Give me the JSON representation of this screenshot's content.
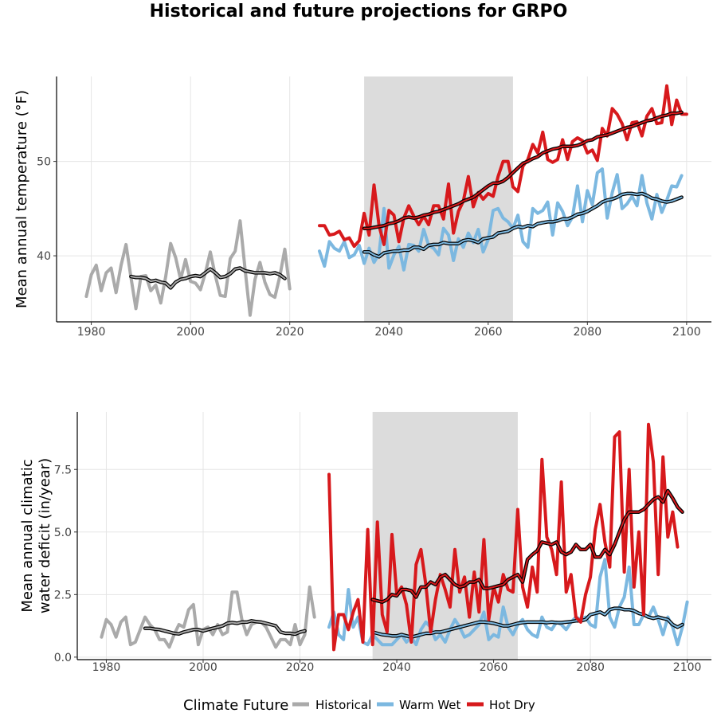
{
  "title": "Historical and future projections for GRPO",
  "colors": {
    "historical": "#aaaaaa",
    "warm_wet": "#7cb8e0",
    "hot_dry": "#d7191c",
    "smooth": "#000000",
    "shade": "#dcdcdc",
    "grid": "#e5e5e5"
  },
  "legend": {
    "title": "Climate Future",
    "items": [
      "Historical",
      "Warm Wet",
      "Hot Dry"
    ],
    "position": "bottom"
  },
  "chart_data": [
    {
      "type": "line",
      "ylabel": "Mean annual temperature (°F)",
      "xlim": [
        1973,
        2105
      ],
      "ylim": [
        33,
        59
      ],
      "xticks": [
        1980,
        2000,
        2020,
        2040,
        2060,
        2080,
        2100
      ],
      "yticks": [
        40,
        50
      ],
      "shaded_period": [
        2035,
        2065
      ],
      "grid": true,
      "series": [
        {
          "name": "Historical",
          "x_start": 1979,
          "values": [
            35.7,
            38,
            39,
            36.3,
            38.2,
            38.7,
            36.1,
            39,
            41.2,
            37.7,
            34.4,
            37.8,
            37.9,
            36.3,
            36.9,
            35,
            37.8,
            41.3,
            39.8,
            37.5,
            39.6,
            37.3,
            37.1,
            36.4,
            38.2,
            40.4,
            37.9,
            35.8,
            35.7,
            39.7,
            40.5,
            43.7,
            38.6,
            33.7,
            37.5,
            39.3,
            37.2,
            35.9,
            35.6,
            37.8,
            40.7,
            36.5
          ]
        },
        {
          "name": "Historical",
          "smooth": true,
          "x_start": 1988,
          "values": [
            37.8,
            37.7,
            37.7,
            37.6,
            37.3,
            37.4,
            37.2,
            37.1,
            36.6,
            37.2,
            37.5,
            37.6,
            37.8,
            37.9,
            37.8,
            38.2,
            38.6,
            38.2,
            37.7,
            37.8,
            38.1,
            38.6,
            38.7,
            38.4,
            38.3,
            38.2,
            38.2,
            38.2,
            38.1,
            38.2,
            38.0,
            37.6
          ]
        },
        {
          "name": "Warm Wet",
          "x_start": 2026,
          "values": [
            40.5,
            38.9,
            41.5,
            40.8,
            40.5,
            41.5,
            39.8,
            40.1,
            41.1,
            39.2,
            40.8,
            39.3,
            40.2,
            45,
            38.7,
            40.1,
            41,
            38.5,
            41.2,
            41.1,
            40.5,
            42.8,
            41.1,
            40.8,
            40.1,
            42.9,
            42.2,
            39.5,
            41.8,
            40.9,
            42.4,
            41.4,
            42.8,
            40.4,
            41.7,
            44.8,
            45,
            44,
            43.6,
            42.9,
            44.3,
            41.5,
            40.9,
            45,
            44.5,
            44.8,
            45.7,
            42.2,
            45.6,
            44.7,
            43.2,
            44.1,
            47.4,
            43.6,
            46.9,
            45.4,
            48.8,
            49.2,
            44,
            46.7,
            48.6,
            45,
            45.5,
            46.3,
            45.3,
            48.5,
            45.6,
            43.9,
            46.5,
            44.6,
            45.9,
            47.4,
            47.3,
            48.5
          ]
        },
        {
          "name": "Warm Wet",
          "smooth": true,
          "x_start": 2035,
          "values": [
            40.4,
            40.4,
            40.1,
            39.9,
            40.3,
            40.4,
            40.5,
            40.5,
            40.6,
            40.6,
            40.9,
            40.9,
            40.7,
            41.1,
            41.2,
            41.2,
            41.4,
            41.3,
            41.3,
            41.3,
            41.6,
            41.7,
            41.6,
            41.4,
            41.8,
            41.9,
            42.0,
            42.4,
            42.5,
            42.6,
            42.9,
            43.1,
            43.0,
            43.2,
            43.1,
            43.4,
            43.5,
            43.6,
            43.6,
            43.7,
            43.9,
            43.9,
            44.1,
            44.4,
            44.5,
            44.7,
            45.0,
            45.3,
            45.7,
            45.9,
            46.0,
            46.2,
            46.5,
            46.6,
            46.6,
            46.5,
            46.6,
            46.4,
            46.1,
            46.0,
            45.8,
            45.7,
            45.8,
            46.0,
            46.2
          ]
        },
        {
          "name": "Hot Dry",
          "x_start": 2026,
          "values": [
            43.2,
            43.2,
            42.2,
            42.3,
            42.6,
            41.7,
            41.9,
            41,
            41.6,
            44.5,
            42.2,
            47.5,
            43.2,
            41.2,
            44.8,
            44.3,
            41.5,
            44,
            45.3,
            44.2,
            43.3,
            44.2,
            43.3,
            45.3,
            45.3,
            43.9,
            47.6,
            42.4,
            44.7,
            45.8,
            48.4,
            45.2,
            46.7,
            46,
            46.6,
            46.3,
            48.4,
            50,
            50,
            47.3,
            46.8,
            49.5,
            50.2,
            51.8,
            50.9,
            53.1,
            50.2,
            49.9,
            50.2,
            52.3,
            50.2,
            52.1,
            52.5,
            52.2,
            50.9,
            51.2,
            50.1,
            53.5,
            52.7,
            55.6,
            55,
            54,
            52.3,
            54.1,
            54.2,
            52.7,
            54.8,
            55.6,
            54,
            54.1,
            58,
            53.9,
            56.5,
            55,
            55
          ]
        },
        {
          "name": "Hot Dry",
          "smooth": true,
          "x_start": 2035,
          "values": [
            42.9,
            42.9,
            43.0,
            43.1,
            43.2,
            43.4,
            43.5,
            43.7,
            44.0,
            44.1,
            44.0,
            44.1,
            44.3,
            44.4,
            44.6,
            44.7,
            44.9,
            45.1,
            45.3,
            45.5,
            45.8,
            46.0,
            46.2,
            46.6,
            47.0,
            47.4,
            47.7,
            47.7,
            47.9,
            48.3,
            48.8,
            49.3,
            49.8,
            50.0,
            50.3,
            50.5,
            50.9,
            51.1,
            51.3,
            51.4,
            51.6,
            51.6,
            51.6,
            51.7,
            51.9,
            52.2,
            52.3,
            52.6,
            52.7,
            52.8,
            53.0,
            53.2,
            53.4,
            53.6,
            53.7,
            53.9,
            54.1,
            54.3,
            54.4,
            54.6,
            54.8,
            54.9,
            55.1,
            55.1,
            55.2
          ]
        }
      ]
    },
    {
      "type": "line",
      "ylabel": "Mean annual climatic water deficit (in/year)",
      "ylabel_lines": [
        "Mean annual climatic",
        "water deficit (in/year)"
      ],
      "xlim": [
        1974,
        2105
      ],
      "ylim": [
        -0.1,
        9.8
      ],
      "xticks": [
        1980,
        2000,
        2020,
        2040,
        2060,
        2080,
        2100
      ],
      "yticks": [
        0.0,
        2.5,
        5.0,
        7.5
      ],
      "ytick_labels": [
        "0.0",
        "2.5",
        "5.0",
        "7.5"
      ],
      "shaded_period": [
        2035,
        2065
      ],
      "grid": true,
      "series": [
        {
          "name": "Historical",
          "x_start": 1979,
          "values": [
            0.8,
            1.5,
            1.3,
            0.8,
            1.4,
            1.6,
            0.5,
            0.6,
            1.1,
            1.6,
            1.3,
            1.1,
            0.7,
            0.7,
            0.4,
            0.9,
            1.3,
            1.2,
            1.9,
            2.1,
            0.5,
            1.1,
            1.2,
            0.9,
            1.3,
            0.9,
            1,
            2.6,
            2.6,
            1.5,
            0.9,
            1.3,
            1.4,
            1.4,
            1.2,
            0.8,
            0.4,
            0.7,
            0.7,
            0.5,
            1.3,
            0.5,
            0.9,
            2.8,
            1.6
          ]
        },
        {
          "name": "Historical",
          "smooth": true,
          "x_start": 1988,
          "values": [
            1.15,
            1.15,
            1.12,
            1.1,
            1.05,
            1.0,
            0.95,
            0.93,
            1.0,
            1.05,
            1.1,
            1.1,
            1.05,
            1.1,
            1.15,
            1.2,
            1.25,
            1.35,
            1.38,
            1.35,
            1.4,
            1.4,
            1.45,
            1.42,
            1.4,
            1.35,
            1.3,
            1.25,
            1.0,
            0.95,
            0.95,
            0.92,
            1.0,
            1.05
          ]
        },
        {
          "name": "Warm Wet",
          "x_start": 2026,
          "values": [
            1.2,
            1.8,
            0.9,
            0.7,
            2.7,
            1.2,
            1.6,
            0.6,
            0.5,
            0.9,
            0.7,
            0.5,
            0.5,
            0.5,
            0.7,
            0.9,
            0.6,
            0.8,
            0.5,
            1.1,
            1.4,
            1.2,
            0.7,
            0.9,
            0.6,
            1.1,
            1.5,
            1.2,
            0.8,
            0.9,
            1.1,
            1.3,
            1.8,
            0.7,
            0.9,
            0.8,
            2,
            1.2,
            0.9,
            1.3,
            1.5,
            1.1,
            0.9,
            0.8,
            1.6,
            1.2,
            1.1,
            1.4,
            1.3,
            1.1,
            1.4,
            1.6,
            1.5,
            1.6,
            1.3,
            1.2,
            3.2,
            3.9,
            1.6,
            1.2,
            2,
            2.4,
            3.6,
            1.3,
            1.3,
            1.7,
            1.6,
            2,
            1.5,
            0.9,
            1.6,
            1.2,
            0.5,
            1.2,
            2.2
          ]
        },
        {
          "name": "Warm Wet",
          "smooth": true,
          "x_start": 2035,
          "values": [
            1.0,
            0.95,
            0.9,
            0.88,
            0.85,
            0.85,
            0.9,
            0.85,
            0.8,
            0.85,
            0.9,
            0.95,
            0.95,
            1.0,
            1.0,
            1.05,
            1.1,
            1.15,
            1.2,
            1.25,
            1.3,
            1.35,
            1.4,
            1.4,
            1.38,
            1.35,
            1.3,
            1.25,
            1.25,
            1.3,
            1.35,
            1.38,
            1.4,
            1.4,
            1.4,
            1.4,
            1.38,
            1.4,
            1.38,
            1.38,
            1.4,
            1.42,
            1.45,
            1.45,
            1.5,
            1.7,
            1.75,
            1.8,
            1.7,
            1.9,
            1.95,
            1.95,
            1.9,
            1.9,
            1.85,
            1.75,
            1.7,
            1.6,
            1.55,
            1.6,
            1.55,
            1.5,
            1.3,
            1.2,
            1.3
          ]
        },
        {
          "name": "Hot Dry",
          "x_start": 2026,
          "values": [
            7.3,
            0.3,
            1.7,
            1.7,
            1.1,
            1.8,
            2.3,
            0.6,
            5.1,
            0.5,
            5.4,
            1.7,
            1,
            4.9,
            2.5,
            2.8,
            2.1,
            0.6,
            3.7,
            4.3,
            2.9,
            1,
            2.3,
            3.3,
            2.7,
            2,
            4.3,
            2.6,
            3.2,
            1.6,
            3.4,
            1.8,
            4.7,
            1.5,
            2.8,
            2.2,
            3.3,
            2.7,
            2.6,
            5.9,
            2.8,
            2,
            3.6,
            2.6,
            7.9,
            4.8,
            4.3,
            3.3,
            7,
            2.6,
            3.3,
            1.6,
            1.4,
            2.5,
            3.2,
            5.1,
            6.1,
            4.6,
            3.6,
            8.8,
            9,
            3.4,
            7.5,
            2.8,
            5,
            1.7,
            9.3,
            7.8,
            3.3,
            8,
            4.8,
            5.8,
            4.4
          ]
        },
        {
          "name": "Hot Dry",
          "smooth": true,
          "x_start": 2035,
          "values": [
            2.3,
            2.25,
            2.2,
            2.3,
            2.5,
            2.45,
            2.7,
            2.7,
            2.65,
            2.4,
            2.8,
            2.8,
            3.0,
            2.9,
            3.2,
            3.3,
            3.1,
            2.9,
            2.8,
            2.85,
            3.0,
            3.0,
            3.1,
            2.75,
            2.75,
            2.8,
            2.85,
            2.9,
            3.1,
            3.2,
            3.3,
            3.0,
            3.9,
            4.1,
            4.25,
            4.6,
            4.55,
            4.5,
            4.6,
            4.2,
            4.1,
            4.2,
            4.5,
            4.3,
            4.3,
            4.5,
            4.0,
            4.0,
            4.3,
            4.1,
            4.5,
            5.0,
            5.5,
            5.8,
            5.8,
            5.8,
            5.9,
            6.1,
            6.3,
            6.4,
            6.2,
            6.65,
            6.35,
            6.0,
            5.8
          ]
        }
      ]
    }
  ]
}
